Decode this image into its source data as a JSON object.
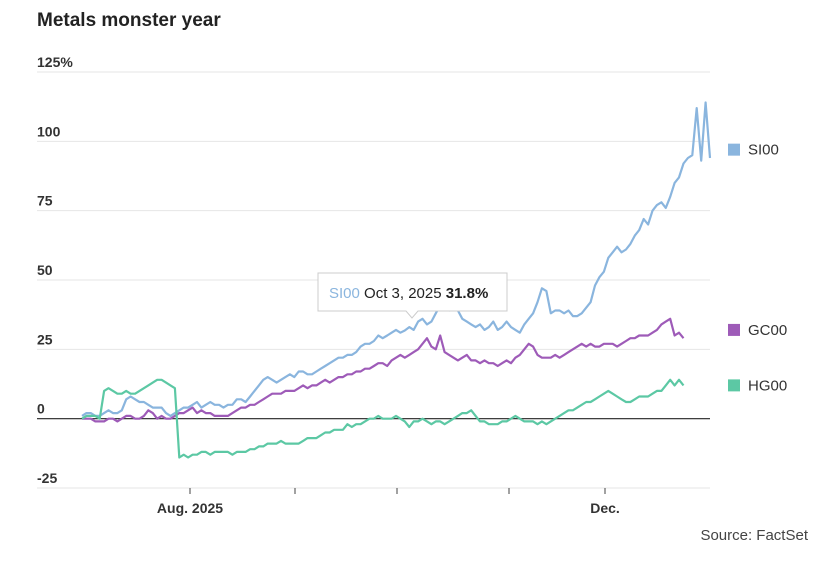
{
  "chart_data": {
    "type": "line",
    "title": "Metals monster year",
    "source": "Source: FactSet",
    "y_unit_label": "125%",
    "ylim": [
      -25,
      125
    ],
    "yticks": [
      -25,
      0,
      25,
      50,
      75,
      100,
      125
    ],
    "ytick_labels": [
      "-25",
      "0",
      "25",
      "50",
      "75",
      "100",
      "125%"
    ],
    "x_tick_labels": [
      "Aug. 2025",
      "Dec."
    ],
    "grid": true,
    "legend_position": "right",
    "series": [
      {
        "name": "SI00",
        "color": "#8ab5de",
        "values": [
          1,
          2,
          2,
          1,
          1,
          2,
          3,
          2,
          2,
          3,
          7,
          8,
          7,
          6,
          6,
          5,
          4,
          4,
          4,
          2,
          1,
          2,
          3,
          4,
          4,
          5,
          6,
          4,
          5,
          6,
          5,
          5,
          4,
          5,
          5,
          7,
          7,
          6,
          8,
          10,
          12,
          14,
          15,
          14,
          13,
          14,
          15,
          16,
          15,
          17,
          17,
          16,
          16,
          17,
          18,
          19,
          20,
          21,
          22,
          22,
          23,
          23,
          24,
          26,
          27,
          27,
          28,
          30,
          29,
          30,
          31,
          32,
          31,
          31.8,
          33,
          32,
          35,
          36,
          34,
          35,
          38,
          41,
          40,
          39,
          43,
          39,
          36,
          35,
          34,
          33,
          34,
          32,
          33,
          35,
          32,
          33,
          35,
          33,
          32,
          31,
          34,
          36,
          38,
          42,
          47,
          46,
          38,
          39,
          39,
          38,
          39,
          37,
          37,
          38,
          40,
          42,
          48,
          51,
          53,
          58,
          60,
          62,
          60,
          61,
          63,
          66,
          68,
          72,
          70,
          75,
          77,
          78,
          76,
          80,
          85,
          87,
          92,
          94,
          95,
          112,
          93,
          114,
          94
        ],
        "legend": "SI00"
      },
      {
        "name": "GC00",
        "color": "#9e5bb8",
        "values": [
          0,
          0,
          0,
          -1,
          -1,
          -1,
          0,
          0,
          -1,
          0,
          1,
          1,
          0,
          0,
          1,
          3,
          2,
          0,
          1,
          0,
          0,
          1,
          2,
          2,
          3,
          4,
          2,
          3,
          2,
          2,
          1,
          1,
          1,
          1,
          2,
          3,
          4,
          4,
          5,
          5,
          6,
          7,
          8,
          9,
          9,
          9,
          10,
          10,
          10,
          11,
          12,
          11,
          12,
          12,
          13,
          14,
          13,
          14,
          15,
          15,
          16,
          16,
          17,
          17,
          18,
          18,
          19,
          20,
          20,
          19,
          21,
          22,
          23,
          22,
          23,
          24,
          25,
          27,
          29,
          26,
          25,
          30,
          24,
          23,
          22,
          21,
          22,
          23,
          21,
          21,
          20,
          21,
          20,
          20,
          19,
          20,
          21,
          20,
          22,
          23,
          25,
          27,
          26,
          23,
          22,
          22,
          22,
          23,
          22,
          23,
          24,
          25,
          26,
          27,
          26,
          27,
          26,
          26,
          27,
          27,
          27,
          26,
          27,
          28,
          29,
          29,
          30,
          30,
          30,
          31,
          32,
          34,
          35,
          36,
          30,
          31,
          29
        ],
        "legend": "GC00"
      },
      {
        "name": "HG00",
        "color": "#5cc8a4",
        "values": [
          0,
          1,
          1,
          1,
          0,
          10,
          11,
          10,
          9,
          9,
          10,
          9,
          9,
          10,
          11,
          12,
          13,
          14,
          14,
          13,
          12,
          11,
          -14,
          -13,
          -14,
          -13,
          -13,
          -12,
          -12,
          -13,
          -12,
          -12,
          -12,
          -12,
          -13,
          -12,
          -12,
          -12,
          -11,
          -11,
          -10,
          -10,
          -9,
          -9,
          -9,
          -8,
          -9,
          -9,
          -9,
          -9,
          -8,
          -7,
          -7,
          -7,
          -6,
          -5,
          -5,
          -4,
          -4,
          -4,
          -2,
          -3,
          -2,
          -2,
          -1,
          0,
          0,
          1,
          0,
          0,
          0,
          1,
          0,
          -1,
          -3,
          -1,
          -1,
          0,
          -1,
          -2,
          -1,
          -1,
          -2,
          -1,
          0,
          1,
          2,
          2,
          3,
          1,
          -1,
          -1,
          -2,
          -2,
          -2,
          -1,
          -1,
          0,
          1,
          0,
          -1,
          -1,
          -1,
          -2,
          -1,
          -2,
          -1,
          0,
          1,
          2,
          3,
          3,
          4,
          5,
          6,
          6,
          7,
          8,
          9,
          10,
          9,
          8,
          7,
          6,
          6,
          7,
          8,
          8,
          8,
          9,
          10,
          10,
          12,
          14,
          12,
          14,
          12
        ],
        "legend": "HG00"
      }
    ],
    "tooltip": {
      "series": "SI00",
      "date": "Oct 3, 2025",
      "value_label": "31.8%"
    }
  },
  "colors": {
    "axis": "#222222",
    "grid": "#e6e6e6",
    "tooltip_border": "#cccccc"
  }
}
